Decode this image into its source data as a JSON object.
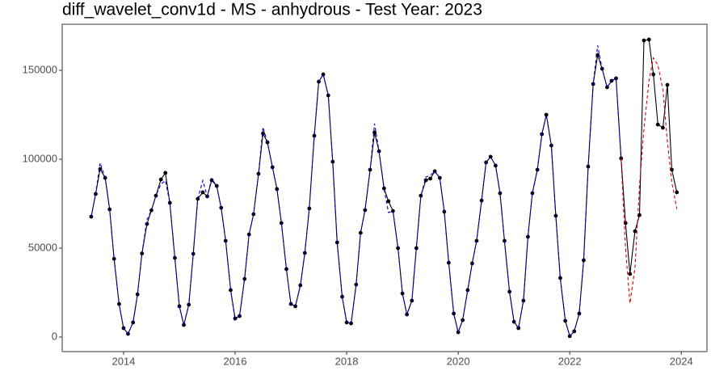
{
  "chart_data": {
    "type": "line",
    "title": "diff_wavelet_conv1d - MS - anhydrous - Test Year: 2023",
    "x": [
      2013.42,
      2013.5,
      2013.58,
      2013.67,
      2013.75,
      2013.83,
      2013.92,
      2014,
      2014.08,
      2014.17,
      2014.25,
      2014.33,
      2014.42,
      2014.5,
      2014.58,
      2014.67,
      2014.75,
      2014.83,
      2014.92,
      2015,
      2015.08,
      2015.17,
      2015.25,
      2015.33,
      2015.42,
      2015.5,
      2015.58,
      2015.67,
      2015.75,
      2015.83,
      2015.92,
      2016,
      2016.08,
      2016.17,
      2016.25,
      2016.33,
      2016.42,
      2016.5,
      2016.58,
      2016.67,
      2016.75,
      2016.83,
      2016.92,
      2017,
      2017.08,
      2017.17,
      2017.25,
      2017.33,
      2017.42,
      2017.5,
      2017.58,
      2017.67,
      2017.75,
      2017.83,
      2017.92,
      2018,
      2018.08,
      2018.17,
      2018.25,
      2018.33,
      2018.42,
      2018.5,
      2018.58,
      2018.67,
      2018.75,
      2018.83,
      2018.92,
      2019,
      2019.08,
      2019.17,
      2019.25,
      2019.33,
      2019.42,
      2019.5,
      2019.58,
      2019.67,
      2019.75,
      2019.83,
      2019.92,
      2020,
      2020.08,
      2020.17,
      2020.25,
      2020.33,
      2020.42,
      2020.5,
      2020.58,
      2020.67,
      2020.75,
      2020.83,
      2020.92,
      2021,
      2021.08,
      2021.17,
      2021.25,
      2021.33,
      2021.42,
      2021.5,
      2021.58,
      2021.67,
      2021.75,
      2021.83,
      2021.92,
      2022,
      2022.08,
      2022.17,
      2022.25,
      2022.33,
      2022.42,
      2022.5,
      2022.58,
      2022.67,
      2022.75,
      2022.83,
      2022.92,
      2023,
      2023.08,
      2023.17,
      2023.25,
      2023.33,
      2023.42,
      2023.5,
      2023.58,
      2023.67,
      2023.75,
      2023.83,
      2023.92
    ],
    "series": [
      {
        "color": "#000000",
        "dash": false,
        "points": true,
        "values": [
          67700,
          80500,
          94500,
          89500,
          71800,
          44000,
          18600,
          5000,
          1800,
          8200,
          24000,
          47000,
          63600,
          71300,
          79500,
          88600,
          92300,
          75500,
          44500,
          17300,
          6800,
          18200,
          46800,
          77700,
          81400,
          79100,
          88200,
          85000,
          72700,
          54100,
          26400,
          10500,
          11800,
          32700,
          57700,
          69100,
          91800,
          114500,
          109500,
          95500,
          83200,
          64100,
          38200,
          18600,
          17300,
          29100,
          47300,
          72300,
          113200,
          143600,
          147700,
          135900,
          98600,
          53200,
          22700,
          8200,
          7700,
          29500,
          58600,
          71400,
          94100,
          115000,
          104500,
          83600,
          76400,
          70900,
          50000,
          24500,
          12700,
          20500,
          50000,
          79500,
          88200,
          89100,
          93200,
          89500,
          70500,
          41800,
          13200,
          2700,
          9500,
          26400,
          41400,
          54100,
          76800,
          98200,
          101400,
          96400,
          80900,
          54100,
          25500,
          8600,
          5000,
          20500,
          56400,
          80900,
          94100,
          114100,
          125000,
          107700,
          68200,
          33200,
          9100,
          500,
          3200,
          13200,
          43200,
          95900,
          142300,
          158600,
          150900,
          140500,
          144100,
          145500,
          100500,
          64100,
          35500,
          59500,
          68600,
          166800,
          167300,
          147700,
          119500,
          117700,
          141800,
          94100,
          81400
        ]
      },
      {
        "color": "#0000cc",
        "dash": true,
        "points": false,
        "values": [
          67700,
          80500,
          98000,
          89500,
          71800,
          44000,
          18600,
          5000,
          1800,
          8200,
          24000,
          47000,
          66000,
          71300,
          79500,
          86000,
          88000,
          75500,
          44500,
          17300,
          6800,
          18200,
          46800,
          77700,
          88000,
          79100,
          89000,
          85000,
          72700,
          54100,
          26400,
          9500,
          11800,
          32700,
          57700,
          69100,
          91800,
          118000,
          109500,
          95500,
          83200,
          64100,
          38200,
          18600,
          17300,
          29100,
          47300,
          72300,
          113200,
          143600,
          147700,
          135900,
          98600,
          53200,
          22700,
          8200,
          7700,
          29500,
          58600,
          71400,
          94100,
          120000,
          104500,
          83600,
          70000,
          70900,
          50000,
          24500,
          12700,
          20500,
          50000,
          79500,
          90000,
          91000,
          93200,
          89500,
          70500,
          41800,
          13200,
          2700,
          9500,
          26400,
          41400,
          54100,
          76800,
          98200,
          101400,
          96400,
          80900,
          54100,
          25500,
          8600,
          5000,
          20500,
          56400,
          80900,
          94100,
          114100,
          125000,
          107700,
          68200,
          33200,
          9100,
          500,
          3200,
          13200,
          43200,
          95900,
          142300,
          164000,
          150900,
          140500,
          144100,
          145500,
          100500,
          null,
          null,
          null,
          null,
          null,
          null,
          null,
          null,
          null,
          null,
          null,
          null
        ]
      },
      {
        "color": "#dd0000",
        "dash": true,
        "points": false,
        "x": [
          2022.92,
          2023,
          2023.08,
          2023.17,
          2023.25,
          2023.33,
          2023.42,
          2023.5,
          2023.58,
          2023.67,
          2023.75,
          2023.83,
          2023.92
        ],
        "values": [
          100500,
          50000,
          19000,
          39000,
          85000,
          117000,
          144000,
          157000,
          153000,
          139000,
          110000,
          87000,
          72000
        ]
      }
    ],
    "xlim": [
      2012.9,
      2024.46
    ],
    "xticks": [
      2014,
      2016,
      2018,
      2020,
      2022,
      2024
    ],
    "ylim": [
      -8182,
      175909
    ],
    "yticks": [
      0,
      50000,
      100000,
      150000
    ]
  }
}
